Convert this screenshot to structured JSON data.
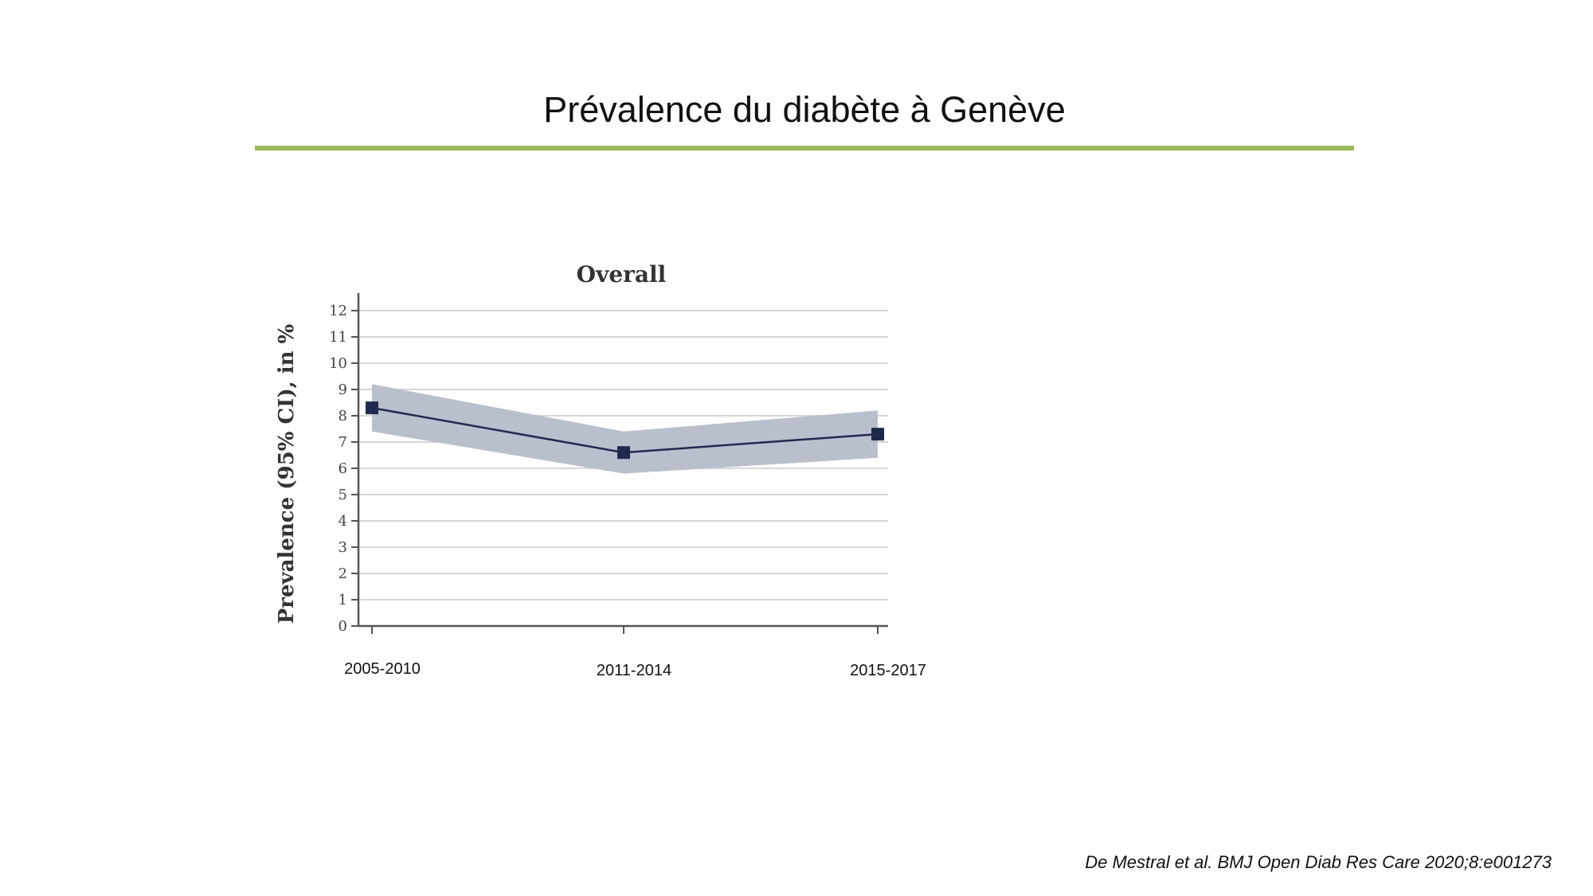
{
  "slide": {
    "title": "Prévalence du diabète à Genève",
    "citation": "De Mestral et al. BMJ Open Diab Res Care 2020;8:e001273",
    "accent_color": "#9bbb59"
  },
  "chart_data": {
    "type": "line",
    "title": "Overall",
    "xlabel": "",
    "ylabel": "Prevalence (95% CI), in %",
    "categories": [
      "2005-2010",
      "2011-2014",
      "2015-2017"
    ],
    "series": [
      {
        "name": "Prevalence",
        "values": [
          8.3,
          6.6,
          7.3
        ],
        "ci_lower": [
          7.4,
          5.8,
          6.4
        ],
        "ci_upper": [
          9.2,
          7.4,
          8.2
        ],
        "color": "#1f2a4d",
        "band_color": "#b9bfcc"
      }
    ],
    "yticks": [
      0,
      1,
      2,
      3,
      4,
      5,
      6,
      7,
      8,
      9,
      10,
      11,
      12
    ],
    "ylim": [
      0,
      12
    ],
    "grid": true
  }
}
